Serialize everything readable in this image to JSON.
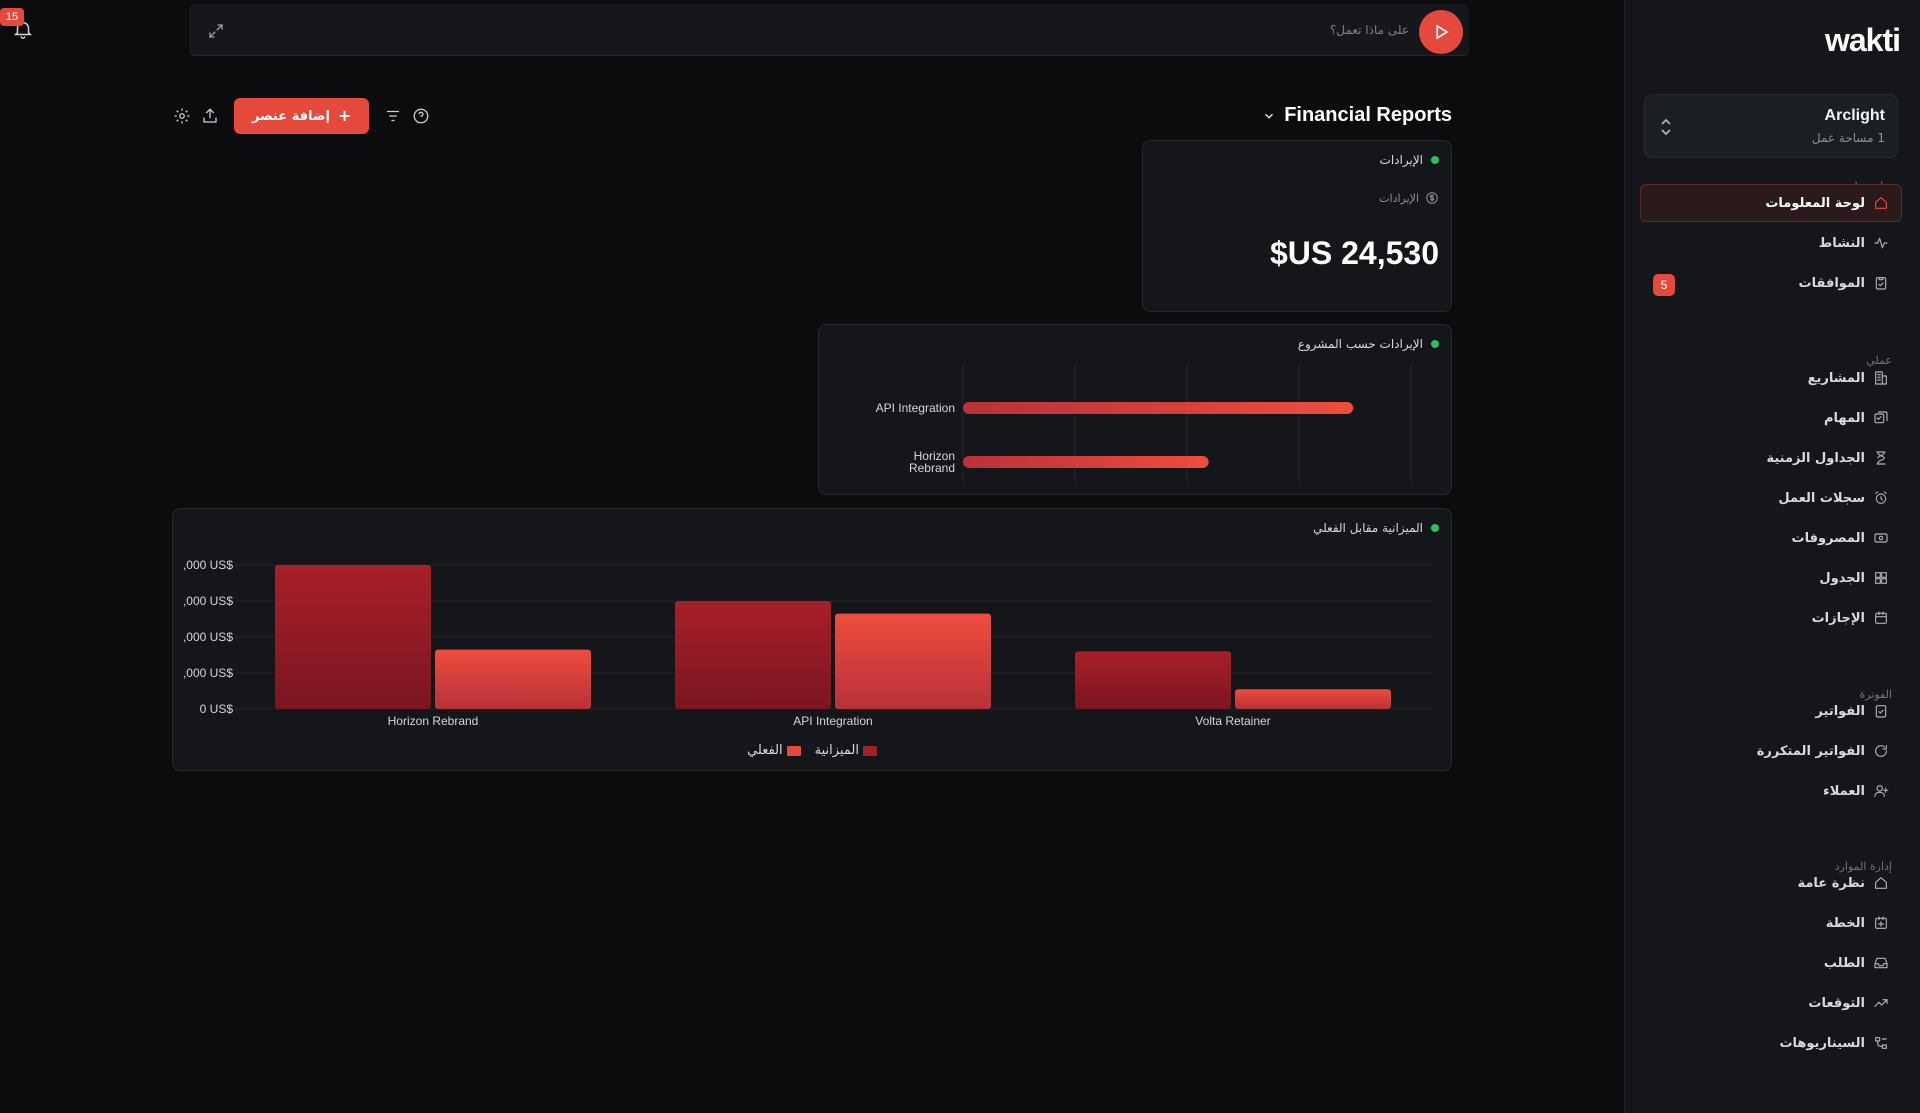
{
  "app": {
    "logo": "wakti"
  },
  "notifications": {
    "count": "15"
  },
  "topbar": {
    "placeholder": "على ماذا تعمل؟"
  },
  "workspace": {
    "name": "Arclight",
    "subtitle": "1 مساحة عمل"
  },
  "sidebar": {
    "sections": [
      {
        "label": "نظرة عامة",
        "items": [
          {
            "label": "لوحة المعلومات",
            "icon": "home-icon",
            "active": true
          },
          {
            "label": "النشاط",
            "icon": "activity-icon"
          },
          {
            "label": "الموافقات",
            "icon": "clipboard-check-icon",
            "badge": "5"
          }
        ]
      },
      {
        "label": "عملي",
        "items": [
          {
            "label": "المشاريع",
            "icon": "building-icon"
          },
          {
            "label": "المهام",
            "icon": "tasks-icon"
          },
          {
            "label": "الجداول الزمنية",
            "icon": "hourglass-icon"
          },
          {
            "label": "سجلات العمل",
            "icon": "alarm-clock-icon"
          },
          {
            "label": "المصروفات",
            "icon": "banknote-icon"
          },
          {
            "label": "الجدول",
            "icon": "grid-icon"
          },
          {
            "label": "الإجازات",
            "icon": "calendar-icon"
          }
        ]
      },
      {
        "label": "الفوترة",
        "items": [
          {
            "label": "الفواتير",
            "icon": "invoice-check-icon"
          },
          {
            "label": "الفواتير المتكررة",
            "icon": "refresh-icon"
          },
          {
            "label": "العملاء",
            "icon": "user-plus-icon"
          }
        ]
      },
      {
        "label": "إدارة الموارد",
        "items": [
          {
            "label": "نظرة عامة",
            "icon": "home-icon"
          },
          {
            "label": "الخطة",
            "icon": "calendar-plus-icon"
          },
          {
            "label": "الطلب",
            "icon": "inbox-icon"
          },
          {
            "label": "التوقعات",
            "icon": "trending-up-icon"
          },
          {
            "label": "السيناريوهات",
            "icon": "branch-icon"
          }
        ]
      }
    ]
  },
  "header": {
    "title": "Financial Reports",
    "add_label": "إضافة عنصر"
  },
  "widgets": {
    "revenue": {
      "title": "الإيرادات",
      "sub_label": "الإيرادات",
      "value": "$US 24,530"
    },
    "by_project": {
      "title": "الإيرادات حسب المشروع"
    },
    "budget": {
      "title": "الميزانية مقابل الفعلي"
    }
  },
  "colors": {
    "accent": "#e5493c",
    "budget": "#a0202b",
    "actual": "#e5493c",
    "status_green": "#22c55e"
  },
  "chart_data": [
    {
      "type": "bar",
      "orientation": "horizontal",
      "title": "الإيرادات حسب المشروع",
      "categories": [
        "API Integration",
        "Horizon Rebrand"
      ],
      "values": [
        13500,
        8500
      ],
      "xlim": [
        0,
        15500
      ],
      "grid": true
    },
    {
      "type": "bar",
      "title": "الميزانية مقابل الفعلي",
      "categories": [
        "Horizon Rebrand",
        "API Integration",
        "Volta Retainer"
      ],
      "series": [
        {
          "name": "الميزانية",
          "values": [
            16000,
            12000,
            6400
          ]
        },
        {
          "name": "الفعلي",
          "values": [
            6600,
            10600,
            2200
          ]
        }
      ],
      "yticks": [
        "0 US$",
        ",000 US$",
        ",000 US$",
        ",000 US$",
        ",000 US$"
      ],
      "ylim": [
        0,
        16000
      ],
      "legend": "bottom-center",
      "grid": true
    }
  ]
}
